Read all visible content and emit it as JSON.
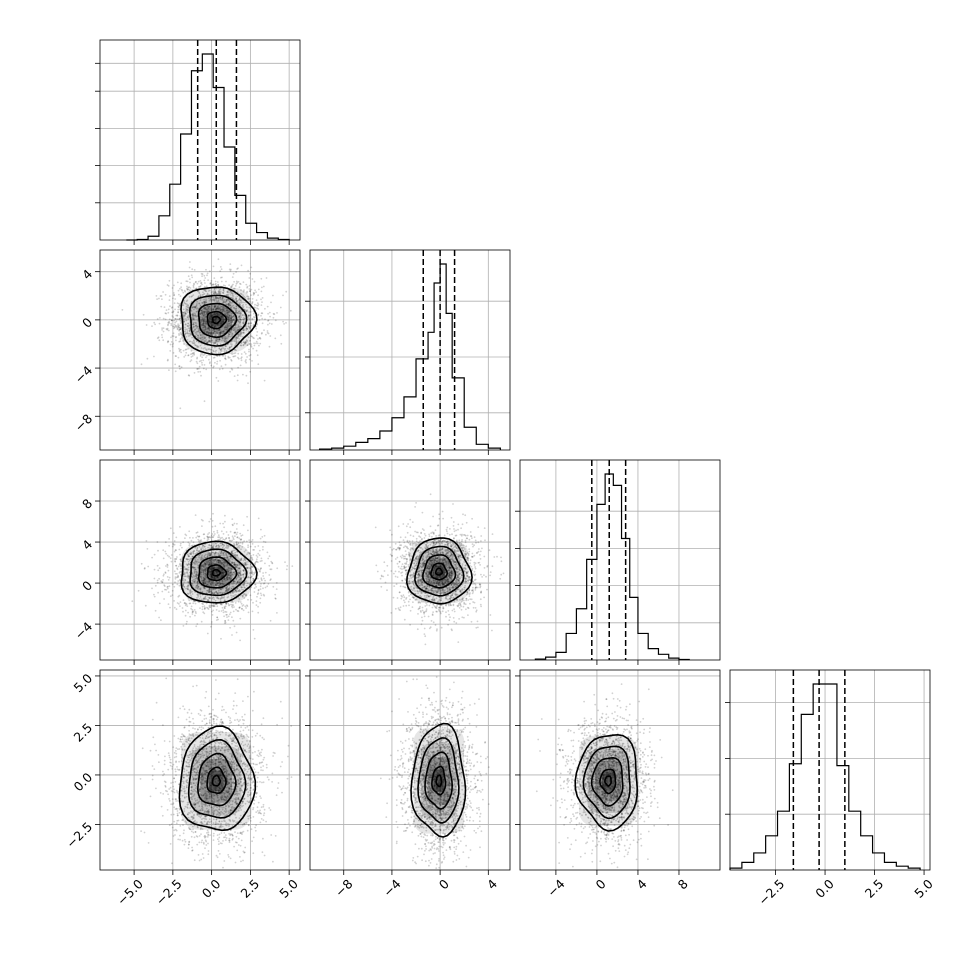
{
  "chart_data": {
    "type": "corner",
    "n_params": 4,
    "colors": {
      "ink": "#000000",
      "grid": "#b0b0b0",
      "background": "#ffffff"
    },
    "params": [
      {
        "range": [
          -7.2,
          5.7
        ],
        "ticks": [
          -5.0,
          -2.5,
          0.0,
          2.5,
          5.0
        ],
        "tick_labels": [
          "−5.0",
          "−2.5",
          "0.0",
          "2.5",
          "5.0"
        ],
        "quantiles": [
          -0.9,
          0.3,
          1.6
        ],
        "hist_bins": [
          -5.5,
          -4.8,
          -4.1,
          -3.4,
          -2.7,
          -2.0,
          -1.3,
          -0.6,
          0.1,
          0.8,
          1.5,
          2.2,
          2.9,
          3.6,
          4.3,
          5.0
        ],
        "hist_counts": [
          0,
          0.003,
          0.02,
          0.13,
          0.3,
          0.57,
          0.91,
          1.0,
          0.82,
          0.5,
          0.24,
          0.09,
          0.04,
          0.01,
          0.003
        ],
        "hist_ticks": [
          0.2,
          0.4,
          0.6,
          0.8,
          0.95
        ]
      },
      {
        "range": [
          -10.8,
          5.8
        ],
        "ticks": [
          -8,
          -4,
          0,
          4
        ],
        "tick_labels": [
          "−8",
          "−4",
          "0",
          "4"
        ],
        "quantiles": [
          -1.4,
          0.0,
          1.2
        ],
        "hist_bins": [
          -10,
          -9,
          -8,
          -7,
          -6,
          -5,
          -4,
          -3,
          -2,
          -1,
          -0.5,
          0,
          0.5,
          1,
          2,
          3,
          4,
          5
        ],
        "hist_counts": [
          0.005,
          0.01,
          0.02,
          0.04,
          0.06,
          0.1,
          0.17,
          0.28,
          0.48,
          0.62,
          0.88,
          0.98,
          0.72,
          0.38,
          0.12,
          0.03,
          0.01
        ],
        "hist_ticks": [
          0.2,
          0.5,
          0.8
        ]
      },
      {
        "range": [
          -7.5,
          12.0
        ],
        "ticks": [
          -4,
          0,
          4,
          8
        ],
        "tick_labels": [
          "−4",
          "0",
          "4",
          "8"
        ],
        "quantiles": [
          -0.5,
          1.2,
          2.8
        ],
        "hist_bins": [
          -6,
          -5,
          -4,
          -3,
          -2,
          -1,
          0,
          0.8,
          1.6,
          2.4,
          3.2,
          4,
          5,
          6,
          7,
          8,
          9
        ],
        "hist_counts": [
          0.005,
          0.015,
          0.04,
          0.14,
          0.27,
          0.53,
          0.82,
          0.98,
          0.92,
          0.64,
          0.33,
          0.14,
          0.06,
          0.03,
          0.01,
          0.003
        ],
        "hist_ticks": [
          0.2,
          0.4,
          0.6,
          0.8
        ]
      },
      {
        "range": [
          -4.8,
          5.3
        ],
        "ticks": [
          -2.5,
          0.0,
          2.5,
          5.0
        ],
        "tick_labels": [
          "−2.5",
          "0.0",
          "2.5",
          "5.0"
        ],
        "quantiles": [
          -1.6,
          -0.3,
          1.0
        ],
        "hist_bins": [
          -4.8,
          -4.2,
          -3.6,
          -3.0,
          -2.4,
          -1.8,
          -1.2,
          -0.6,
          0.0,
          0.6,
          1.2,
          1.8,
          2.4,
          3.0,
          3.6,
          4.2,
          4.8
        ],
        "hist_counts": [
          0.01,
          0.04,
          0.09,
          0.18,
          0.31,
          0.56,
          0.82,
          0.98,
          0.98,
          0.55,
          0.31,
          0.18,
          0.09,
          0.04,
          0.02,
          0.01
        ],
        "hist_ticks": [
          0.3,
          0.6,
          0.9
        ]
      }
    ],
    "y_axes": [
      null,
      {
        "ticks": [
          4,
          0,
          -4,
          -8
        ],
        "tick_labels": [
          "4",
          "0",
          "−4",
          "−8"
        ]
      },
      {
        "ticks": [
          8,
          4,
          0,
          -4
        ],
        "tick_labels": [
          "8",
          "4",
          "0",
          "−4"
        ]
      },
      {
        "ticks": [
          5.0,
          2.5,
          0.0,
          -2.5
        ],
        "tick_labels": [
          "5.0",
          "2.5",
          "0.0",
          "−2.5"
        ]
      }
    ],
    "pairs": [
      {
        "row": 1,
        "col": 0,
        "center": [
          0.3,
          0.0
        ],
        "sigma": [
          1.2,
          1.4
        ]
      },
      {
        "row": 2,
        "col": 0,
        "center": [
          0.3,
          1.0
        ],
        "sigma": [
          1.2,
          1.5
        ]
      },
      {
        "row": 2,
        "col": 1,
        "center": [
          -0.1,
          1.1
        ],
        "sigma": [
          1.3,
          1.6
        ]
      },
      {
        "row": 3,
        "col": 0,
        "center": [
          0.3,
          -0.3
        ],
        "sigma": [
          1.2,
          1.3
        ]
      },
      {
        "row": 3,
        "col": 1,
        "center": [
          -0.1,
          -0.3
        ],
        "sigma": [
          1.1,
          1.4
        ]
      },
      {
        "row": 3,
        "col": 2,
        "center": [
          1.1,
          -0.3
        ],
        "sigma": [
          1.5,
          1.2
        ]
      }
    ]
  }
}
